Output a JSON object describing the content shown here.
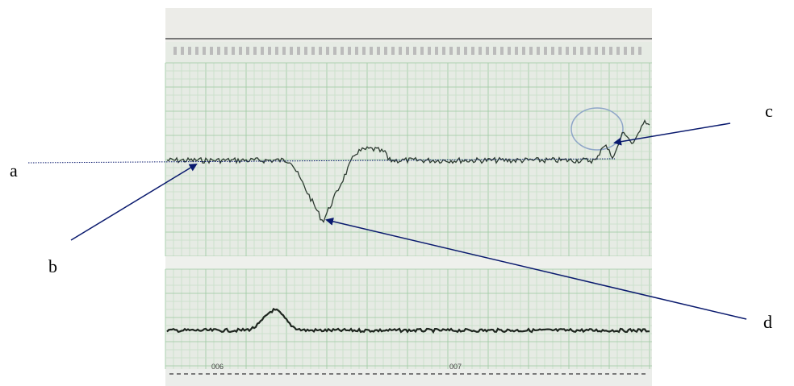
{
  "labels": {
    "a": "a",
    "b": "b",
    "c": "c",
    "d": "d"
  },
  "paper": {
    "marks": [
      "006",
      "007"
    ]
  }
}
